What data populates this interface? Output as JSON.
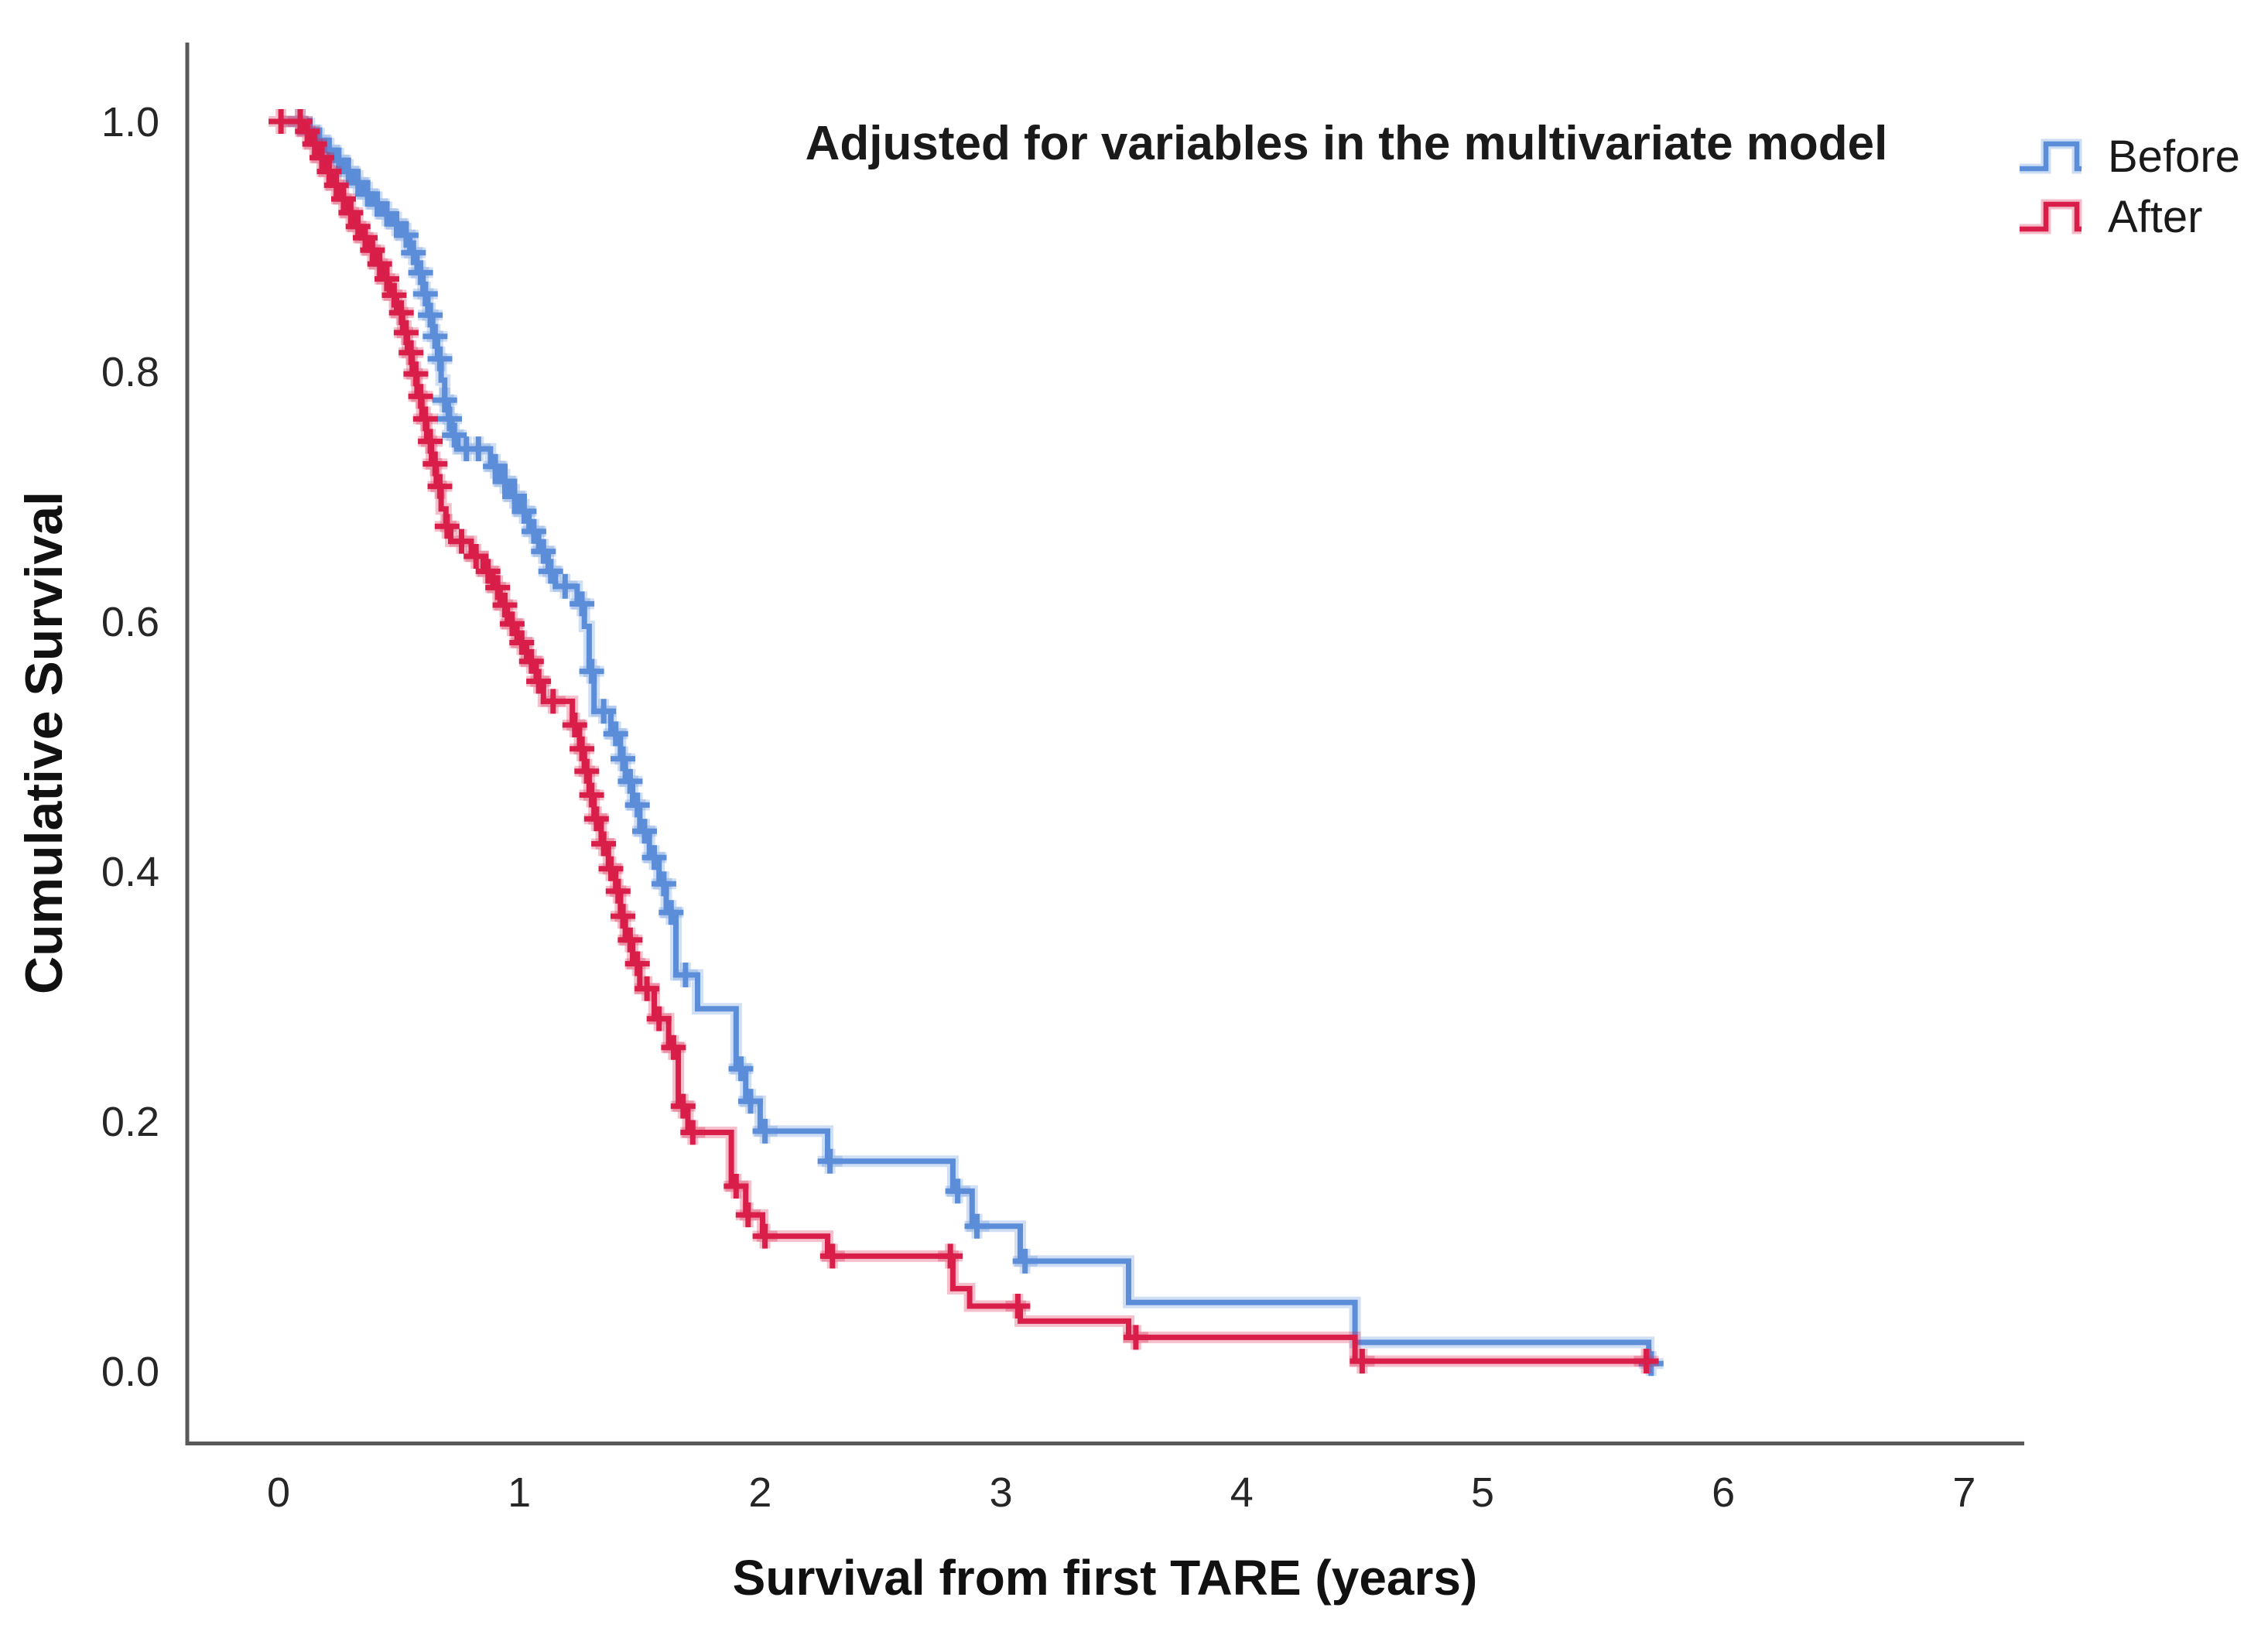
{
  "chart_data": {
    "type": "line",
    "subtype": "kaplan_meier_step",
    "title": "Adjusted for variables in the multivariate model",
    "xlabel": "Survival from first TARE (years)",
    "ylabel": "Cumulative Survival",
    "xlim": [
      0,
      7.24
    ],
    "ylim": [
      0,
      1.0
    ],
    "grid": false,
    "legend_position": "top-right",
    "censor_marker": "plus",
    "axis_color": "#595959",
    "text_color": "#1a1a1a",
    "x_ticks": [
      {
        "v": 0,
        "label": "0"
      },
      {
        "v": 1,
        "label": "1"
      },
      {
        "v": 2,
        "label": "2"
      },
      {
        "v": 3,
        "label": "3"
      },
      {
        "v": 4,
        "label": "4"
      },
      {
        "v": 5,
        "label": "5"
      },
      {
        "v": 6,
        "label": "6"
      },
      {
        "v": 7,
        "label": "7"
      }
    ],
    "y_ticks": [
      {
        "v": 1.0,
        "label": "1.0"
      },
      {
        "v": 0.8,
        "label": "0.8"
      },
      {
        "v": 0.6,
        "label": "0.6"
      },
      {
        "v": 0.4,
        "label": "0.4"
      },
      {
        "v": 0.2,
        "label": "0.2"
      },
      {
        "v": 0.0,
        "label": "0.0"
      }
    ],
    "series": [
      {
        "name": "Before",
        "color": "#5b8dd9",
        "end_time": 5.71,
        "steps": [
          [
            0.0,
            1.0
          ],
          [
            0.1,
            0.993
          ],
          [
            0.15,
            0.985
          ],
          [
            0.19,
            0.977
          ],
          [
            0.23,
            0.969
          ],
          [
            0.27,
            0.96
          ],
          [
            0.31,
            0.951
          ],
          [
            0.35,
            0.942
          ],
          [
            0.39,
            0.934
          ],
          [
            0.43,
            0.926
          ],
          [
            0.47,
            0.918
          ],
          [
            0.51,
            0.909
          ],
          [
            0.545,
            0.895
          ],
          [
            0.575,
            0.879
          ],
          [
            0.6,
            0.862
          ],
          [
            0.62,
            0.845
          ],
          [
            0.64,
            0.828
          ],
          [
            0.66,
            0.81
          ],
          [
            0.675,
            0.793
          ],
          [
            0.69,
            0.777
          ],
          [
            0.705,
            0.762
          ],
          [
            0.72,
            0.749
          ],
          [
            0.745,
            0.738
          ],
          [
            0.88,
            0.724
          ],
          [
            0.92,
            0.712
          ],
          [
            0.96,
            0.7
          ],
          [
            1.0,
            0.688
          ],
          [
            1.04,
            0.672
          ],
          [
            1.08,
            0.656
          ],
          [
            1.12,
            0.64
          ],
          [
            1.15,
            0.628
          ],
          [
            1.24,
            0.614
          ],
          [
            1.27,
            0.596
          ],
          [
            1.29,
            0.56
          ],
          [
            1.31,
            0.528
          ],
          [
            1.38,
            0.51
          ],
          [
            1.42,
            0.49
          ],
          [
            1.44,
            0.472
          ],
          [
            1.47,
            0.453
          ],
          [
            1.5,
            0.432
          ],
          [
            1.54,
            0.411
          ],
          [
            1.58,
            0.39
          ],
          [
            1.61,
            0.367
          ],
          [
            1.65,
            0.317
          ],
          [
            1.74,
            0.29
          ],
          [
            1.9,
            0.242
          ],
          [
            1.94,
            0.216
          ],
          [
            2.0,
            0.192
          ],
          [
            2.28,
            0.168
          ],
          [
            2.8,
            0.144
          ],
          [
            2.88,
            0.116
          ],
          [
            3.08,
            0.088
          ],
          [
            3.53,
            0.055
          ],
          [
            4.47,
            0.023
          ],
          [
            5.69,
            0.006
          ]
        ],
        "censor_times": [
          0.09,
          0.13,
          0.17,
          0.21,
          0.25,
          0.29,
          0.33,
          0.37,
          0.41,
          0.45,
          0.49,
          0.53,
          0.56,
          0.59,
          0.61,
          0.63,
          0.65,
          0.67,
          0.69,
          0.71,
          0.73,
          0.78,
          0.83,
          0.9,
          0.94,
          0.98,
          1.02,
          1.06,
          1.1,
          1.13,
          1.19,
          1.26,
          1.3,
          1.35,
          1.4,
          1.43,
          1.46,
          1.49,
          1.52,
          1.56,
          1.6,
          1.63,
          1.69,
          1.92,
          1.96,
          2.02,
          2.29,
          2.82,
          2.9,
          3.1,
          5.7
        ]
      },
      {
        "name": "After",
        "color": "#d91e49",
        "end_time": 5.7,
        "steps": [
          [
            0.0,
            1.0
          ],
          [
            0.1,
            0.992
          ],
          [
            0.13,
            0.982
          ],
          [
            0.16,
            0.971
          ],
          [
            0.19,
            0.96
          ],
          [
            0.22,
            0.949
          ],
          [
            0.25,
            0.938
          ],
          [
            0.28,
            0.927
          ],
          [
            0.31,
            0.916
          ],
          [
            0.34,
            0.907
          ],
          [
            0.37,
            0.897
          ],
          [
            0.4,
            0.886
          ],
          [
            0.43,
            0.874
          ],
          [
            0.46,
            0.861
          ],
          [
            0.49,
            0.847
          ],
          [
            0.515,
            0.831
          ],
          [
            0.535,
            0.815
          ],
          [
            0.555,
            0.798
          ],
          [
            0.575,
            0.78
          ],
          [
            0.595,
            0.762
          ],
          [
            0.615,
            0.744
          ],
          [
            0.635,
            0.726
          ],
          [
            0.655,
            0.708
          ],
          [
            0.675,
            0.69
          ],
          [
            0.695,
            0.676
          ],
          [
            0.715,
            0.664
          ],
          [
            0.8,
            0.652
          ],
          [
            0.85,
            0.64
          ],
          [
            0.89,
            0.627
          ],
          [
            0.92,
            0.613
          ],
          [
            0.95,
            0.598
          ],
          [
            0.99,
            0.583
          ],
          [
            1.03,
            0.568
          ],
          [
            1.07,
            0.552
          ],
          [
            1.1,
            0.536
          ],
          [
            1.22,
            0.517
          ],
          [
            1.25,
            0.498
          ],
          [
            1.27,
            0.48
          ],
          [
            1.29,
            0.461
          ],
          [
            1.31,
            0.442
          ],
          [
            1.34,
            0.422
          ],
          [
            1.37,
            0.402
          ],
          [
            1.4,
            0.384
          ],
          [
            1.42,
            0.364
          ],
          [
            1.44,
            0.345
          ],
          [
            1.47,
            0.326
          ],
          [
            1.5,
            0.306
          ],
          [
            1.56,
            0.282
          ],
          [
            1.62,
            0.259
          ],
          [
            1.66,
            0.212
          ],
          [
            1.7,
            0.191
          ],
          [
            1.88,
            0.148
          ],
          [
            1.94,
            0.125
          ],
          [
            2.01,
            0.108
          ],
          [
            2.28,
            0.092
          ],
          [
            2.8,
            0.066
          ],
          [
            2.87,
            0.052
          ],
          [
            3.08,
            0.04
          ],
          [
            3.53,
            0.027
          ],
          [
            4.47,
            0.008
          ]
        ],
        "censor_times": [
          0.01,
          0.09,
          0.12,
          0.15,
          0.18,
          0.21,
          0.24,
          0.27,
          0.3,
          0.33,
          0.36,
          0.39,
          0.42,
          0.45,
          0.48,
          0.51,
          0.53,
          0.55,
          0.57,
          0.59,
          0.61,
          0.63,
          0.65,
          0.67,
          0.7,
          0.76,
          0.82,
          0.87,
          0.91,
          0.94,
          0.97,
          1.01,
          1.05,
          1.08,
          1.14,
          1.23,
          1.26,
          1.28,
          1.3,
          1.32,
          1.35,
          1.38,
          1.41,
          1.43,
          1.46,
          1.49,
          1.53,
          1.58,
          1.64,
          1.68,
          1.72,
          1.9,
          1.95,
          2.02,
          2.3,
          2.79,
          3.07,
          3.56,
          4.5,
          5.68
        ]
      }
    ]
  }
}
